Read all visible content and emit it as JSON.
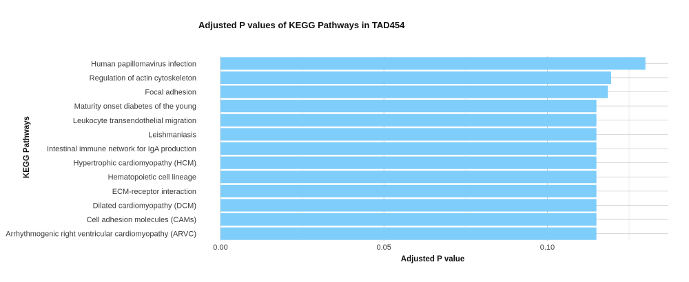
{
  "chart_data": {
    "type": "bar",
    "orientation": "horizontal",
    "title": "Adjusted P values of KEGG Pathways in TAD454",
    "xlabel": "Adjusted P value",
    "ylabel": "KEGG Pathways",
    "xlim": [
      0,
      0.137
    ],
    "x_ticks": [
      0.0,
      0.05,
      0.1
    ],
    "x_tick_labels": [
      "0.00",
      "0.05",
      "0.10"
    ],
    "grid": true,
    "bar_color": "#7FCDFA",
    "categories": [
      "Human papillomavirus infection",
      "Regulation of actin cytoskeleton",
      "Focal adhesion",
      "Maturity onset diabetes of the young",
      "Leukocyte transendothelial migration",
      "Leishmaniasis",
      "Intestinal immune network for IgA production",
      "Hypertrophic cardiomyopathy (HCM)",
      "Hematopoietic cell lineage",
      "ECM-receptor interaction",
      "Dilated cardiomyopathy (DCM)",
      "Cell adhesion molecules (CAMs)",
      "Arrhythmogenic right ventricular cardiomyopathy (ARVC)"
    ],
    "values": [
      0.13,
      0.1195,
      0.1185,
      0.115,
      0.115,
      0.115,
      0.115,
      0.115,
      0.115,
      0.115,
      0.115,
      0.115,
      0.115
    ]
  }
}
